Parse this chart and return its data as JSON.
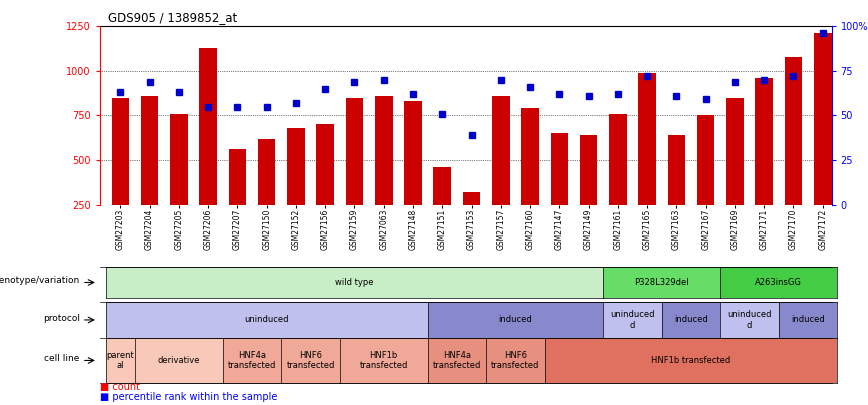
{
  "title": "GDS905 / 1389852_at",
  "samples": [
    "GSM27203",
    "GSM27204",
    "GSM27205",
    "GSM27206",
    "GSM27207",
    "GSM27150",
    "GSM27152",
    "GSM27156",
    "GSM27159",
    "GSM27063",
    "GSM27148",
    "GSM27151",
    "GSM27153",
    "GSM27157",
    "GSM27160",
    "GSM27147",
    "GSM27149",
    "GSM27161",
    "GSM27165",
    "GSM27163",
    "GSM27167",
    "GSM27169",
    "GSM27171",
    "GSM27170",
    "GSM27172"
  ],
  "bar_heights": [
    850,
    860,
    760,
    1130,
    560,
    620,
    680,
    700,
    850,
    860,
    830,
    460,
    320,
    860,
    790,
    650,
    640,
    760,
    990,
    640,
    750,
    850,
    960,
    1080,
    1210
  ],
  "blue_dots": [
    880,
    940,
    880,
    800,
    800,
    800,
    820,
    900,
    940,
    950,
    870,
    760,
    640,
    950,
    910,
    870,
    860,
    870,
    970,
    860,
    840,
    940,
    950,
    970,
    1210
  ],
  "bar_color": "#cc0000",
  "dot_color": "#0000cc",
  "ylim_left": [
    250,
    1250
  ],
  "ylim_right": [
    0,
    100
  ],
  "yticks_left": [
    250,
    500,
    750,
    1000,
    1250
  ],
  "ytick_labels_left": [
    "250",
    "500",
    "750",
    "1000",
    "1250"
  ],
  "yticks_right": [
    0,
    25,
    50,
    75,
    100
  ],
  "ytick_labels_right": [
    "0",
    "25",
    "50",
    "75",
    "100%"
  ],
  "grid_lines": [
    500,
    750,
    1000
  ],
  "genotype_segments": [
    {
      "text": "wild type",
      "start": 0,
      "end": 17,
      "color": "#c8eec8"
    },
    {
      "text": "P328L329del",
      "start": 17,
      "end": 21,
      "color": "#66dd66"
    },
    {
      "text": "A263insGG",
      "start": 21,
      "end": 25,
      "color": "#44cc44"
    }
  ],
  "protocol_segments": [
    {
      "text": "uninduced",
      "start": 0,
      "end": 11,
      "color": "#c0c0ee"
    },
    {
      "text": "induced",
      "start": 11,
      "end": 17,
      "color": "#8888cc"
    },
    {
      "text": "uninduced\nd",
      "start": 17,
      "end": 19,
      "color": "#c0c0ee"
    },
    {
      "text": "induced",
      "start": 19,
      "end": 21,
      "color": "#8888cc"
    },
    {
      "text": "uninduced\nd",
      "start": 21,
      "end": 23,
      "color": "#c0c0ee"
    },
    {
      "text": "induced",
      "start": 23,
      "end": 25,
      "color": "#8888cc"
    }
  ],
  "cellline_segments": [
    {
      "text": "parent\nal",
      "start": 0,
      "end": 1,
      "color": "#f8c8b8"
    },
    {
      "text": "derivative",
      "start": 1,
      "end": 4,
      "color": "#f8c8b8"
    },
    {
      "text": "HNF4a\ntransfected",
      "start": 4,
      "end": 6,
      "color": "#f0a898"
    },
    {
      "text": "HNF6\ntransfected",
      "start": 6,
      "end": 8,
      "color": "#f0a898"
    },
    {
      "text": "HNF1b\ntransfected",
      "start": 8,
      "end": 11,
      "color": "#f0a898"
    },
    {
      "text": "HNF4a\ntransfected",
      "start": 11,
      "end": 13,
      "color": "#e89080"
    },
    {
      "text": "HNF6\ntransfected",
      "start": 13,
      "end": 15,
      "color": "#e89080"
    },
    {
      "text": "HNF1b transfected",
      "start": 15,
      "end": 25,
      "color": "#e07060"
    }
  ],
  "row_labels": [
    "genotype/variation",
    "protocol",
    "cell line"
  ],
  "xlim": [
    -0.7,
    24.3
  ],
  "n_samples": 25
}
